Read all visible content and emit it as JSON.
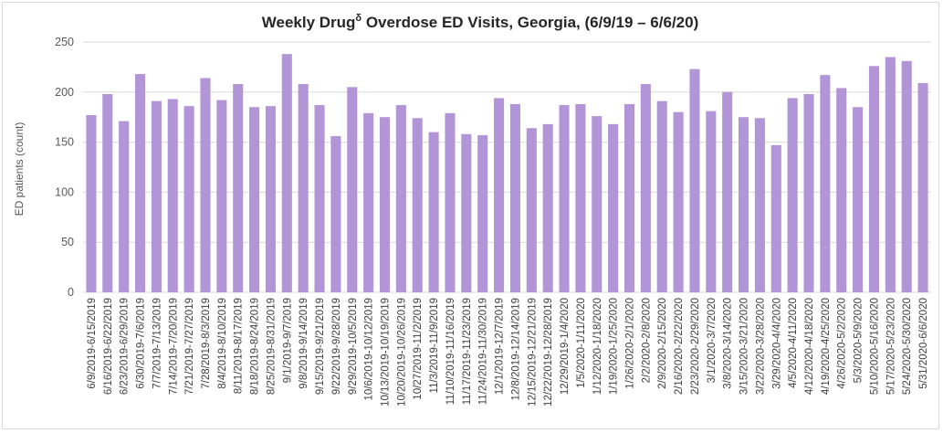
{
  "chart_data": {
    "type": "bar",
    "title": "Weekly Drug",
    "title_superscript": "δ",
    "title_suffix": " Overdose ED Visits, Georgia, (6/9/19 – 6/6/20)",
    "xlabel": "",
    "ylabel": "ED patients (count)",
    "ylim": [
      0,
      250
    ],
    "yticks": [
      0,
      50,
      100,
      150,
      200,
      250
    ],
    "grid": true,
    "legend": "none",
    "bar_color": "#b295d6",
    "grid_color": "#d9d9d9",
    "categories": [
      "6/9/2019-6/15/2019",
      "6/16/2019-6/22/2019",
      "6/23/2019-6/29/2019",
      "6/30/2019-7/6/2019",
      "7/7/2019-7/13/2019",
      "7/14/2019-7/20/2019",
      "7/21/2019-7/27/2019",
      "7/28/2019-8/3/2019",
      "8/4/2019-8/10/2019",
      "8/11/2019-8/17/2019",
      "8/18/2019-8/24/2019",
      "8/25/2019-8/31/2019",
      "9/1/2019-9/7/2019",
      "9/8/2019-9/14/2019",
      "9/15/2019-9/21/2019",
      "9/22/2019-9/28/2019",
      "9/29/2019-10/5/2019",
      "10/6/2019-10/12/2019",
      "10/13/2019-10/19/2019",
      "10/20/2019-10/26/2019",
      "10/27/2019-11/2/2019",
      "11/3/2019-11/9/2019",
      "11/10/2019-11/16/2019",
      "11/17/2019-11/23/2019",
      "11/24/2019-11/30/2019",
      "12/1/2019-12/7/2019",
      "12/8/2019-12/14/2019",
      "12/15/2019-12/21/2019",
      "12/22/2019-12/28/2019",
      "12/29/2019-1/4/2020",
      "1/5/2020-1/11/2020",
      "1/12/2020-1/18/2020",
      "1/19/2020-1/25/2020",
      "1/26/2020-2/1/2020",
      "2/2/2020-2/8/2020",
      "2/9/2020-2/15/2020",
      "2/16/2020-2/22/2020",
      "2/23/2020-2/29/2020",
      "3/1/2020-3/7/2020",
      "3/8/2020-3/14/2020",
      "3/15/2020-3/21/2020",
      "3/22/2020-3/28/2020",
      "3/29/2020-4/4/2020",
      "4/5/2020-4/11/2020",
      "4/12/2020-4/18/2020",
      "4/19/2020-4/25/2020",
      "4/26/2020-5/2/2020",
      "5/3/2020-5/9/2020",
      "5/10/2020-5/16/2020",
      "5/17/2020-5/23/2020",
      "5/24/2020-5/30/2020",
      "5/31/2020-6/6/2020"
    ],
    "values": [
      177,
      198,
      171,
      218,
      191,
      193,
      186,
      214,
      192,
      208,
      185,
      186,
      238,
      208,
      187,
      156,
      205,
      179,
      175,
      187,
      174,
      160,
      179,
      158,
      157,
      194,
      188,
      164,
      168,
      187,
      188,
      176,
      168,
      188,
      208,
      191,
      180,
      223,
      181,
      200,
      175,
      174,
      147,
      194,
      198,
      217,
      204,
      185,
      226,
      235,
      231,
      209
    ]
  }
}
